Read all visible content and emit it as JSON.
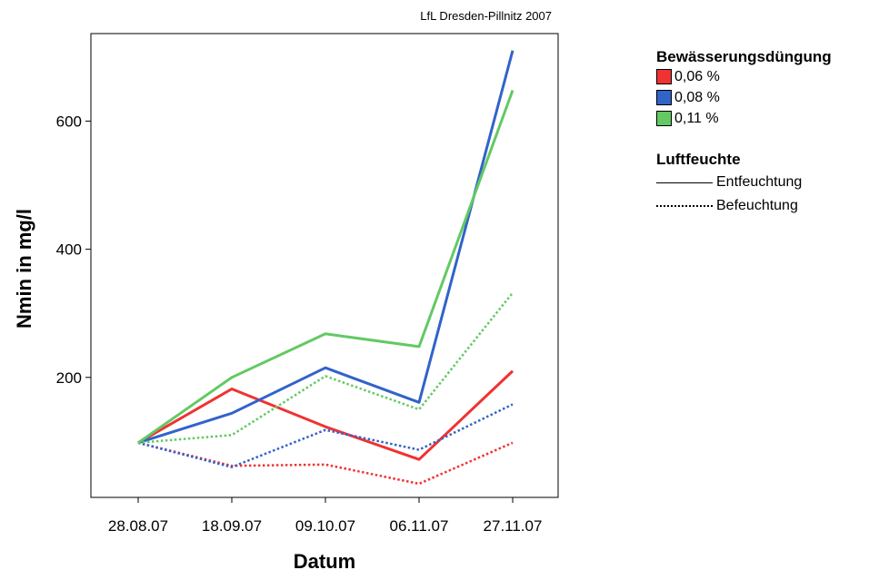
{
  "source_note": "LfL Dresden-Pillnitz 2007",
  "legend": {
    "color_title": "Bewässerungsdüngung",
    "color_items": [
      {
        "label": "0,06 %",
        "color": "#f03232"
      },
      {
        "label": "0,08 %",
        "color": "#3163c9"
      },
      {
        "label": "0,11 %",
        "color": "#63c963"
      }
    ],
    "style_title": "Luftfeuchte",
    "style_items": [
      {
        "label": "Entfeuchtung",
        "style": "solid"
      },
      {
        "label": "Befeuchtung",
        "style": "dotted"
      }
    ]
  },
  "chart_data": {
    "type": "line",
    "xlabel": "Datum",
    "ylabel": "Nmin in mg/l",
    "categories": [
      "28.08.07",
      "18.09.07",
      "09.10.07",
      "06.11.07",
      "27.11.07"
    ],
    "yticks": [
      200,
      400,
      600
    ],
    "ylim": [
      0,
      730
    ],
    "grid": false,
    "legend_position": "right",
    "series": [
      {
        "name": "0,06 % Entfeuchtung",
        "color": "#f03232",
        "style": "solid",
        "values": [
          98,
          182,
          123,
          72,
          210
        ]
      },
      {
        "name": "0,08 % Entfeuchtung",
        "color": "#3163c9",
        "style": "solid",
        "values": [
          98,
          144,
          215,
          161,
          710
        ]
      },
      {
        "name": "0,11 % Entfeuchtung",
        "color": "#63c963",
        "style": "solid",
        "values": [
          98,
          200,
          268,
          248,
          648
        ]
      },
      {
        "name": "0,06 % Befeuchtung",
        "color": "#f03232",
        "style": "dotted",
        "values": [
          98,
          62,
          64,
          34,
          98
        ]
      },
      {
        "name": "0,08 % Befeuchtung",
        "color": "#3163c9",
        "style": "dotted",
        "values": [
          98,
          60,
          118,
          87,
          158
        ]
      },
      {
        "name": "0,11 % Befeuchtung",
        "color": "#63c963",
        "style": "dotted",
        "values": [
          98,
          110,
          202,
          150,
          332
        ]
      }
    ]
  }
}
